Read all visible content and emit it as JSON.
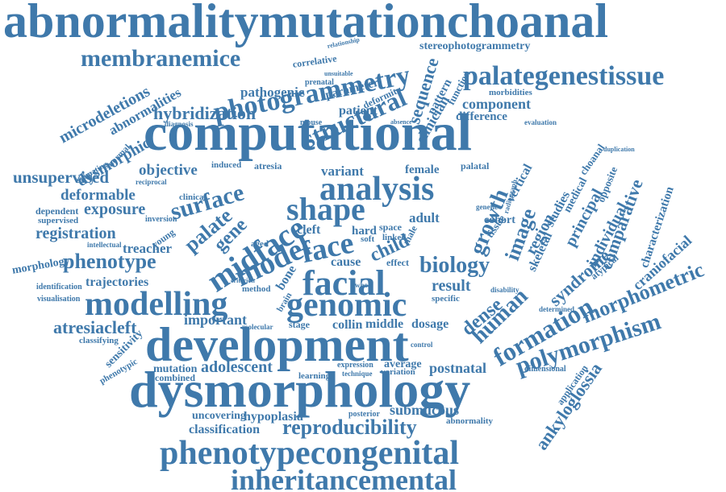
{
  "cloud": {
    "color": "#3f79ab",
    "words": [
      "abnormalitymutationchoanal",
      "membranemice",
      "photogrammetry",
      "palategenestissue",
      "microdeletions",
      "abnormalities",
      "pathogenic",
      "parameter",
      "prenatal",
      "unsuitable",
      "correlative",
      "relationship",
      "stereophotogrammetry",
      "structural",
      "sequence",
      "clinician",
      "function",
      "pattern",
      "morbidities",
      "component",
      "hybridization",
      "patient",
      "deformity",
      "difference",
      "dysmorphic",
      "computational",
      "estimating",
      "normal",
      "unsupervised",
      "objective",
      "deformable",
      "surface",
      "variant",
      "female",
      "palatal",
      "analysis",
      "atresia",
      "exposure",
      "shape",
      "dependent",
      "supervised",
      "midface",
      "palate",
      "gene",
      "growth",
      "image",
      "registration",
      "cleft",
      "adult",
      "vertical",
      "region",
      "principal",
      "individual",
      "comparative",
      "characterization",
      "medical",
      "choanal",
      "opposite",
      "morphology",
      "treacher",
      "model",
      "face",
      "hard",
      "child",
      "phenotype",
      "biology",
      "cohort",
      "tissue",
      "studies",
      "skeletal",
      "syndrome",
      "craniofacial",
      "facial",
      "trajectories",
      "cause",
      "effect",
      "bone",
      "identification",
      "result",
      "dense",
      "human",
      "modelling",
      "genomic",
      "formation",
      "morphometric",
      "polymorphism",
      "atresiacleft",
      "important",
      "stage",
      "collin",
      "middle",
      "dosage",
      "development",
      "sensitivity",
      "classifying",
      "ankyloglossia",
      "mutation",
      "adolescent",
      "average",
      "variation",
      "postnatal",
      "dysmorphology",
      "combined",
      "submucous",
      "uncovering",
      "hypoplasia",
      "classification",
      "reproducibility",
      "phenotypecongenital",
      "inheritancemental",
      "application",
      "abnormality",
      "posterior",
      "visualisation",
      "linked",
      "intellectual",
      "inversion",
      "young",
      "clinical",
      "induced",
      "reciprocal",
      "diagnosis",
      "mouse",
      "absence",
      "space",
      "male",
      "soft",
      "aged",
      "method",
      "brain",
      "whole",
      "specific",
      "disability",
      "determined",
      "atypical",
      "learning",
      "expression",
      "technique",
      "genetic",
      "radiograph",
      "duplication",
      "evaluation",
      "phenotypic",
      "dimensional",
      "control",
      "molecular",
      "criterion"
    ]
  }
}
